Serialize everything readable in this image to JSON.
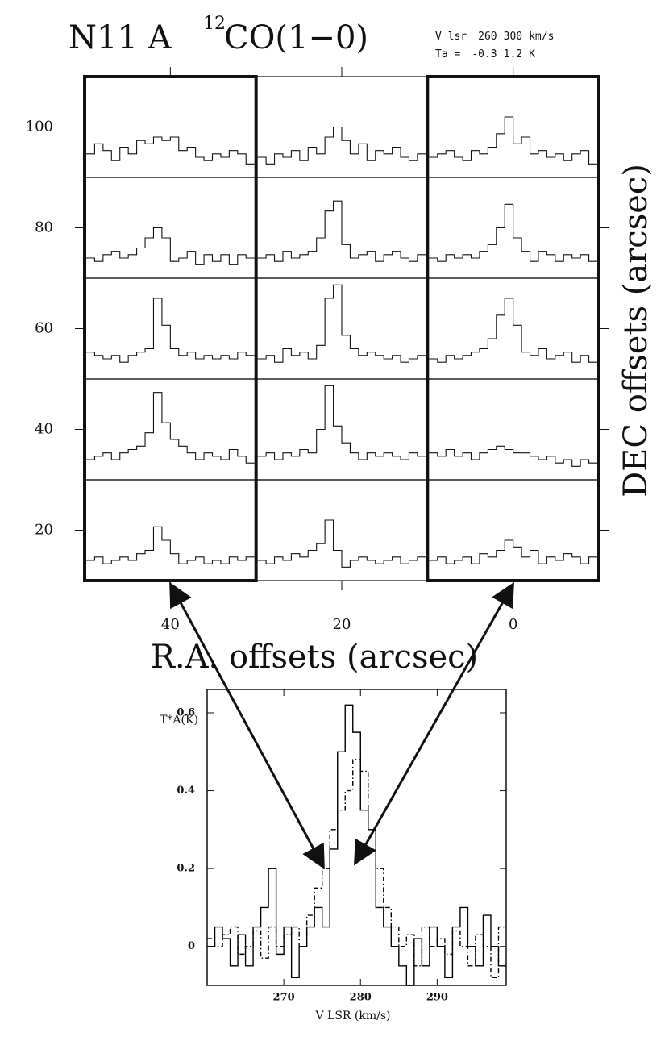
{
  "chart_data": [
    {
      "type": "spectra-grid",
      "title": "N11 A",
      "species_mass": "12",
      "species": "CO(1−0)",
      "velocity_label": "V lsr",
      "vlim": [
        260,
        300
      ],
      "velocity_unit": "km/s",
      "temp_label": "Ta =",
      "talim": [
        -0.3,
        1.2
      ],
      "temp_unit": "K",
      "x_label": "R.A. offsets (arcsec)",
      "y_label": "DEC offsets (arcsec)",
      "xlim": [
        50,
        -10
      ],
      "ylim": [
        10,
        110
      ],
      "xticks": [
        40,
        20,
        0
      ],
      "yticks": [
        100,
        80,
        60,
        40,
        20
      ],
      "highlight_columns": [
        40,
        0
      ],
      "panels": [
        {
          "x": 40,
          "y": 100,
          "values": [
            0.05,
            0.2,
            0.1,
            -0.05,
            0.15,
            0.05,
            0.25,
            0.2,
            0.3,
            0.25,
            0.3,
            0.1,
            0.15,
            0.0,
            -0.05,
            0.05,
            0.0,
            0.1,
            0.05,
            -0.1
          ]
        },
        {
          "x": 20,
          "y": 100,
          "values": [
            0.0,
            -0.1,
            0.05,
            0.0,
            0.1,
            -0.05,
            0.15,
            0.05,
            0.3,
            0.45,
            0.25,
            0.05,
            0.2,
            -0.05,
            0.1,
            0.05,
            0.15,
            0.0,
            -0.05,
            0.05
          ]
        },
        {
          "x": 0,
          "y": 100,
          "values": [
            0.0,
            0.05,
            0.1,
            0.0,
            -0.05,
            0.1,
            0.05,
            0.15,
            0.35,
            0.6,
            0.2,
            0.3,
            0.05,
            0.1,
            0.0,
            0.05,
            -0.05,
            0.05,
            0.1,
            -0.1
          ]
        },
        {
          "x": 40,
          "y": 80,
          "values": [
            0.0,
            -0.05,
            0.05,
            0.1,
            0.0,
            0.05,
            0.15,
            0.3,
            0.45,
            0.3,
            -0.05,
            0.0,
            0.1,
            -0.1,
            0.05,
            -0.05,
            0.05,
            -0.1,
            0.05,
            0.0
          ]
        },
        {
          "x": 20,
          "y": 80,
          "values": [
            0.0,
            0.05,
            -0.05,
            0.1,
            0.0,
            0.05,
            0.1,
            0.3,
            0.7,
            0.85,
            0.2,
            0.0,
            0.05,
            0.1,
            -0.05,
            0.05,
            0.1,
            0.0,
            -0.05,
            0.05
          ]
        },
        {
          "x": 0,
          "y": 80,
          "values": [
            0.0,
            -0.05,
            0.05,
            0.0,
            0.05,
            0.0,
            0.1,
            0.2,
            0.45,
            0.8,
            0.3,
            0.1,
            -0.05,
            0.1,
            0.05,
            -0.05,
            0.05,
            0.0,
            0.05,
            -0.05
          ]
        },
        {
          "x": 40,
          "y": 60,
          "values": [
            0.1,
            0.05,
            0.0,
            0.05,
            -0.05,
            0.05,
            0.1,
            0.15,
            0.9,
            0.5,
            0.15,
            0.05,
            0.1,
            0.0,
            0.05,
            0.0,
            0.05,
            0.0,
            0.1,
            0.05
          ]
        },
        {
          "x": 20,
          "y": 60,
          "values": [
            0.0,
            0.05,
            -0.05,
            0.15,
            0.05,
            0.1,
            0.0,
            0.2,
            0.9,
            1.1,
            0.35,
            0.15,
            0.05,
            0.1,
            0.05,
            0.0,
            0.05,
            -0.05,
            0.0,
            0.05
          ]
        },
        {
          "x": 0,
          "y": 60,
          "values": [
            0.0,
            -0.05,
            0.05,
            0.0,
            0.05,
            0.1,
            0.15,
            0.3,
            0.65,
            0.9,
            0.5,
            0.1,
            0.05,
            0.15,
            0.0,
            0.05,
            0.1,
            -0.05,
            0.05,
            -0.05
          ]
        },
        {
          "x": 40,
          "y": 40,
          "values": [
            0.0,
            0.05,
            0.1,
            0.0,
            0.1,
            0.15,
            0.2,
            0.4,
            1.0,
            0.55,
            0.3,
            0.2,
            0.1,
            0.0,
            0.1,
            0.05,
            0.0,
            0.15,
            0.05,
            -0.05
          ]
        },
        {
          "x": 20,
          "y": 40,
          "values": [
            0.05,
            0.1,
            0.0,
            0.1,
            0.05,
            0.15,
            0.1,
            0.45,
            1.1,
            0.5,
            0.25,
            0.1,
            0.0,
            0.1,
            0.05,
            0.1,
            0.05,
            0.0,
            0.1,
            0.05
          ]
        },
        {
          "x": 0,
          "y": 40,
          "values": [
            0.1,
            0.05,
            0.15,
            0.05,
            0.1,
            0.0,
            0.1,
            0.15,
            0.2,
            0.15,
            0.1,
            0.1,
            0.05,
            0.0,
            0.05,
            -0.05,
            0.0,
            -0.1,
            0.0,
            -0.05
          ]
        },
        {
          "x": 40,
          "y": 20,
          "values": [
            0.0,
            0.05,
            -0.05,
            0.0,
            0.05,
            0.0,
            0.1,
            0.15,
            0.5,
            0.3,
            0.1,
            -0.05,
            0.0,
            0.05,
            -0.05,
            0.0,
            -0.05,
            0.05,
            0.0,
            0.05
          ]
        },
        {
          "x": 20,
          "y": 20,
          "values": [
            0.0,
            -0.05,
            0.05,
            0.0,
            0.1,
            0.05,
            0.15,
            0.25,
            0.6,
            0.15,
            -0.1,
            0.0,
            0.05,
            0.0,
            -0.05,
            0.0,
            0.05,
            -0.05,
            0.0,
            0.05
          ]
        },
        {
          "x": 0,
          "y": 20,
          "values": [
            0.0,
            0.05,
            -0.05,
            0.0,
            0.05,
            -0.05,
            0.1,
            0.05,
            0.15,
            0.3,
            0.2,
            0.05,
            0.15,
            -0.05,
            0.05,
            0.0,
            0.1,
            0.05,
            -0.05,
            0.05
          ]
        }
      ]
    },
    {
      "type": "step-line",
      "x_label": "V LSR (km/s)",
      "y_label": "T*A(K)",
      "xlim": [
        260,
        299
      ],
      "ylim": [
        -0.1,
        0.66
      ],
      "xticks": [
        270,
        280,
        290
      ],
      "yticks": [
        0,
        0.2,
        0.4,
        0.6
      ],
      "x": [
        260,
        261,
        262,
        263,
        264,
        265,
        266,
        267,
        268,
        269,
        270,
        271,
        272,
        273,
        274,
        275,
        276,
        277,
        278,
        279,
        280,
        281,
        282,
        283,
        284,
        285,
        286,
        287,
        288,
        289,
        290,
        291,
        292,
        293,
        294,
        295,
        296,
        297,
        298
      ],
      "series": [
        {
          "color": "#000000",
          "style": "solid",
          "values": [
            0.0,
            0.05,
            0.02,
            -0.05,
            0.03,
            -0.05,
            0.05,
            0.1,
            0.2,
            -0.02,
            0.05,
            -0.08,
            0.0,
            0.05,
            0.1,
            0.05,
            0.25,
            0.5,
            0.62,
            0.55,
            0.35,
            0.3,
            0.1,
            0.05,
            0.0,
            -0.05,
            -0.1,
            0.02,
            -0.05,
            0.05,
            0.0,
            -0.08,
            0.05,
            0.1,
            0.0,
            -0.05,
            0.08,
            0.0,
            -0.05
          ]
        },
        {
          "color": "#000000",
          "style": "dashdot",
          "values": [
            0.02,
            0.0,
            0.03,
            0.05,
            -0.02,
            0.0,
            0.04,
            -0.03,
            0.05,
            0.0,
            0.03,
            0.05,
            0.0,
            0.08,
            0.15,
            0.2,
            0.3,
            0.35,
            0.4,
            0.48,
            0.45,
            0.3,
            0.2,
            0.1,
            0.05,
            0.0,
            0.03,
            -0.05,
            0.05,
            0.0,
            0.02,
            -0.02,
            0.04,
            0.0,
            -0.05,
            0.03,
            0.0,
            -0.08,
            0.05
          ]
        }
      ]
    }
  ]
}
